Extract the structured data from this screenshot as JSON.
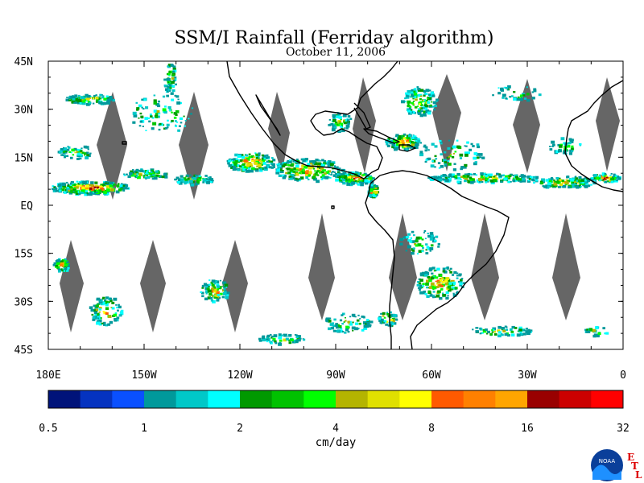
{
  "title": "SSM/I Rainfall (Ferriday algorithm)",
  "date": "October 11, 2006",
  "lat_labels": [
    "45N",
    "30N",
    "15N",
    "EQ",
    "15S",
    "30S",
    "45S"
  ],
  "lat_values": [
    45,
    30,
    15,
    0,
    -15,
    -30,
    -45
  ],
  "lon_labels": [
    "180E",
    "150W",
    "120W",
    "90W",
    "60W",
    "30W",
    "0"
  ],
  "lon_values": [
    -180,
    -150,
    -120,
    -90,
    -60,
    -30,
    0
  ],
  "colorbar": {
    "units": "cm/day",
    "tick_labels": [
      "0.5",
      "1",
      "2",
      "4",
      "8",
      "16",
      "32"
    ],
    "colors": [
      "#00137a",
      "#0533c0",
      "#0a50ff",
      "#00999b",
      "#00c8c8",
      "#00ffff",
      "#009900",
      "#00c200",
      "#00ff00",
      "#b4b400",
      "#e0e000",
      "#ffff00",
      "#ff5a00",
      "#ff8000",
      "#ffa500",
      "#990000",
      "#cc0000",
      "#ff0000"
    ]
  },
  "logo": {
    "text": "NOAA",
    "lab_letters": [
      "E",
      "T",
      "L"
    ],
    "lab_color": "#dd0000"
  }
}
